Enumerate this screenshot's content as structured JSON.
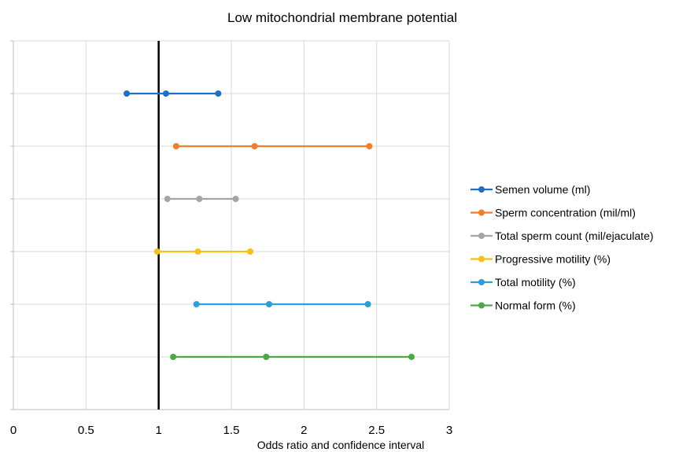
{
  "chart_data": {
    "type": "line",
    "subtype": "forest-plot",
    "title": "Low mitochondrial membrane potential",
    "xlabel": "Odds ratio and confidence interval",
    "ylabel": "",
    "xlim": [
      0,
      3
    ],
    "xticks": [
      "0",
      "0.5",
      "1",
      "1.5",
      "2",
      "2.5",
      "3"
    ],
    "reference_line_x": 1,
    "grid": true,
    "legend_position": "right",
    "series": [
      {
        "name": "Semen volume (ml)",
        "color": "#1f6fc4",
        "lower": 0.78,
        "estimate": 1.05,
        "upper": 1.41
      },
      {
        "name": "Sperm concentration (mil/ml)",
        "color": "#f47d2a",
        "lower": 1.12,
        "estimate": 1.66,
        "upper": 2.45
      },
      {
        "name": "Total sperm count (mil/ejaculate)",
        "color": "#a5a5a5",
        "lower": 1.06,
        "estimate": 1.28,
        "upper": 1.53
      },
      {
        "name": "Progressive motility  (%)",
        "color": "#fbbf1a",
        "lower": 0.99,
        "estimate": 1.27,
        "upper": 1.63
      },
      {
        "name": "Total motility (%)",
        "color": "#2a9fd8",
        "lower": 1.26,
        "estimate": 1.76,
        "upper": 2.44
      },
      {
        "name": "Normal form (%)",
        "color": "#4aa845",
        "lower": 1.1,
        "estimate": 1.74,
        "upper": 2.74
      }
    ]
  }
}
